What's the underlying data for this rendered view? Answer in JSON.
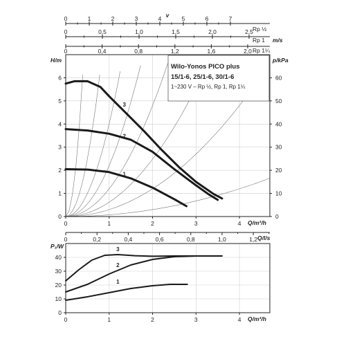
{
  "title": {
    "line1": "Wilo-Yonos PICO plus",
    "line2": "15/1-6, 25/1-6, 30/1-6",
    "line3": "1~230 V – Rp ½, Rp 1, Rp 1¼"
  },
  "chart_data": [
    {
      "type": "line",
      "name": "head",
      "xlabel": "Q/m³/h",
      "ylabel_left": "H/m",
      "ylabel_right": "p/kPa",
      "xlim": [
        0,
        4.7
      ],
      "ylim": [
        0,
        7
      ],
      "ylim_right": [
        0,
        70
      ],
      "xticks": [
        "0",
        "1",
        "2",
        "3",
        "4"
      ],
      "yticks_left": [
        "0",
        "1",
        "2",
        "3",
        "4",
        "5",
        "6"
      ],
      "yticks_right": [
        "0",
        "10",
        "20",
        "30",
        "40",
        "50",
        "60"
      ],
      "series": [
        {
          "label": "1",
          "x": [
            0,
            0.5,
            1.0,
            1.5,
            2.0,
            2.5,
            2.78
          ],
          "y": [
            2.05,
            2.03,
            1.92,
            1.65,
            1.25,
            0.75,
            0.45
          ]
        },
        {
          "label": "2",
          "x": [
            0,
            0.5,
            1.0,
            1.5,
            2.0,
            2.5,
            3.0,
            3.3,
            3.5
          ],
          "y": [
            3.78,
            3.72,
            3.58,
            3.32,
            2.8,
            2.05,
            1.35,
            0.95,
            0.72
          ]
        },
        {
          "label": "3",
          "x": [
            0,
            0.2,
            0.5,
            0.8,
            1.0,
            1.4,
            1.8,
            2.2,
            2.6,
            3.0,
            3.4,
            3.6
          ],
          "y": [
            5.75,
            5.85,
            5.85,
            5.6,
            5.2,
            4.45,
            3.7,
            2.9,
            2.15,
            1.5,
            0.98,
            0.78
          ]
        }
      ],
      "pipe_curves": true,
      "grid": true
    },
    {
      "type": "line",
      "name": "power",
      "xlabel": "Q/m³/h",
      "ylabel": "P₁/W",
      "xlim": [
        0,
        4.7
      ],
      "ylim": [
        0,
        50
      ],
      "xticks": [
        "0",
        "1",
        "2",
        "3",
        "4"
      ],
      "yticks": [
        "0",
        "10",
        "20",
        "30",
        "40"
      ],
      "series": [
        {
          "label": "1",
          "x": [
            0,
            0.5,
            1.0,
            1.5,
            2.0,
            2.4,
            2.8
          ],
          "y": [
            9,
            11.5,
            14.5,
            17.5,
            19.5,
            20.5,
            20.5
          ]
        },
        {
          "label": "2",
          "x": [
            0,
            0.5,
            1.0,
            1.5,
            2.0,
            2.5,
            3.0,
            3.5
          ],
          "y": [
            15,
            20.5,
            28,
            34.5,
            38.5,
            40.5,
            41,
            41
          ]
        },
        {
          "label": "3",
          "x": [
            0,
            0.3,
            0.6,
            0.9,
            1.2,
            1.6,
            2.0,
            2.5,
            3.0,
            3.6
          ],
          "y": [
            23,
            31,
            38,
            41.5,
            42,
            41.2,
            40.8,
            41,
            41,
            41
          ]
        }
      ],
      "grid": true
    }
  ],
  "top_scales": {
    "v_label": "v",
    "v_unit": "m/s",
    "scale1": {
      "end_label": "Rp ½",
      "ticks": [
        "0",
        "1",
        "2",
        "3",
        "4",
        "5",
        "6",
        "7"
      ]
    },
    "scale2": {
      "end_label": "Rp 1",
      "ticks": [
        "0",
        "0,5",
        "1,0",
        "1,5",
        "2,0",
        "2,5"
      ]
    },
    "scale3": {
      "end_label": "Rp 1¼",
      "ticks": [
        "0",
        "0,4",
        "0,8",
        "1,2",
        "1,6",
        "2,0"
      ]
    }
  },
  "middle_scale": {
    "unit": "Q/l/s",
    "ticks": [
      "0",
      "0,2",
      "0,4",
      "0,6",
      "0,8",
      "1,0",
      "1,2"
    ]
  }
}
